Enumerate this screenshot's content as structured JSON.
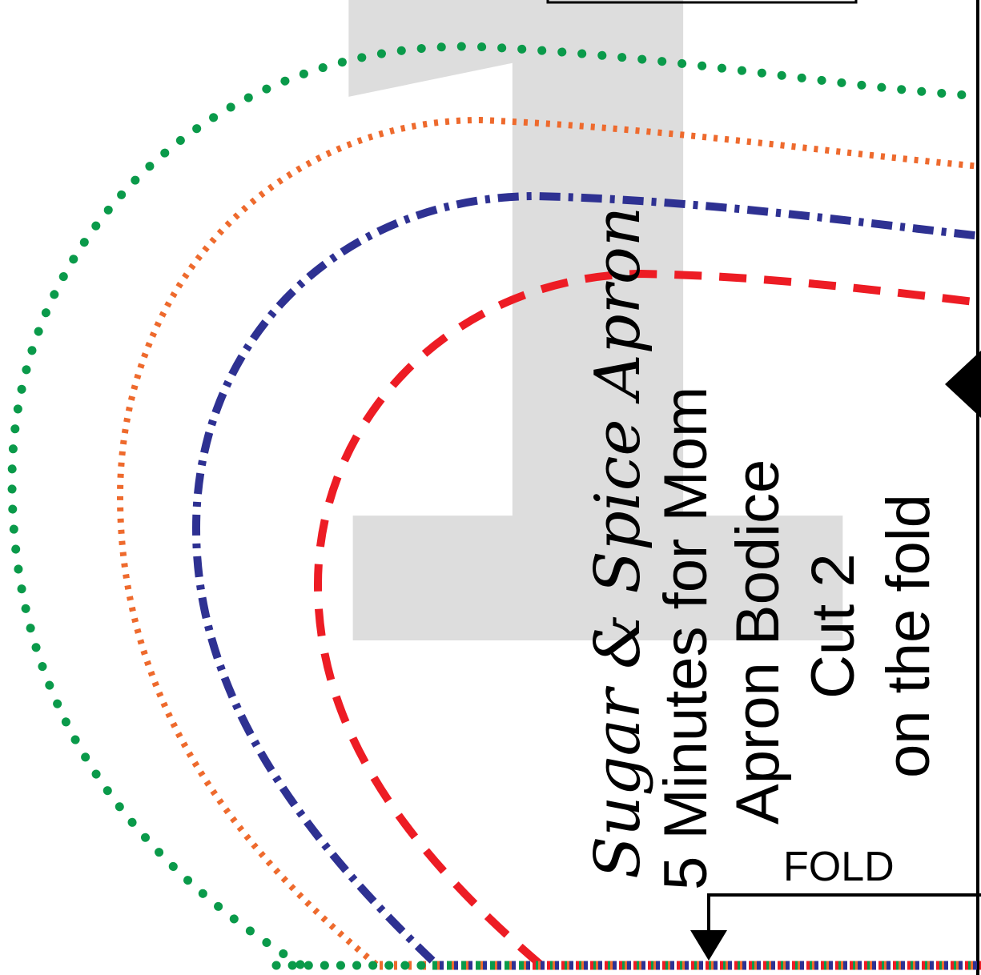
{
  "page_number": "1",
  "title_script": "Sugar & Spice Apron",
  "lines": {
    "designer": "5 Minutes for Mom",
    "piece": "Apron Bodice",
    "cut": "Cut 2",
    "fold_note": "on the fold"
  },
  "fold_label": "FOLD",
  "colors": {
    "green": "#0a9a4a",
    "orange": "#ee6a2d",
    "navy": "#2e3192",
    "red": "#ed1c24",
    "page_number_gray": "#dddddd",
    "ink": "#000000"
  }
}
